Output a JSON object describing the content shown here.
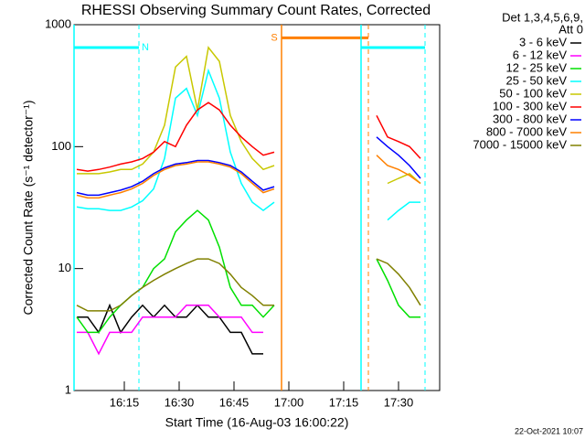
{
  "chart_data": {
    "type": "line",
    "title": "RHESSI Observing Summary Count Rates, Corrected",
    "x_label": "Start Time (16-Aug-03 16:00:22)",
    "y_label": "Corrected Count Rate (s⁻¹ detector⁻¹)",
    "legend_header": [
      "Det 1,3,4,5,6,9,",
      "Att 0"
    ],
    "footer": "22-Oct-2021 10:07",
    "log_y": true,
    "xlim": [
      1.25,
      101.25
    ],
    "xticks": [
      {
        "value": 15,
        "label": "16:15"
      },
      {
        "value": 30,
        "label": "16:30"
      },
      {
        "value": 45,
        "label": "16:45"
      },
      {
        "value": 60,
        "label": "17:00"
      },
      {
        "value": 75,
        "label": "17:15"
      },
      {
        "value": 90,
        "label": "17:30"
      }
    ],
    "ylim": [
      1,
      1000
    ],
    "yticks": [
      1,
      10,
      100,
      1000
    ],
    "x": [
      2,
      5,
      8,
      11,
      14,
      17,
      20,
      23,
      26,
      29,
      32,
      35,
      38,
      41,
      44,
      47,
      50,
      53,
      56,
      70,
      84,
      87,
      90,
      93,
      96
    ],
    "series": [
      {
        "name": "3 - 6 keV",
        "color": "#000000",
        "values": [
          4,
          4,
          3,
          5,
          3,
          4,
          5,
          4,
          5,
          4,
          4,
          5,
          4,
          4,
          3,
          3,
          2,
          2,
          null,
          null,
          null,
          null,
          null,
          null,
          null
        ]
      },
      {
        "name": "6 - 12 keV",
        "color": "#ff00ff",
        "values": [
          3,
          3,
          2,
          3,
          3,
          3,
          4,
          4,
          4,
          4,
          5,
          5,
          5,
          4,
          4,
          4,
          3,
          3,
          null,
          null,
          null,
          null,
          null,
          null,
          null
        ]
      },
      {
        "name": "12 - 25 keV",
        "color": "#00e000",
        "values": [
          4,
          3,
          3,
          4,
          5,
          6,
          7,
          10,
          12,
          20,
          25,
          30,
          25,
          15,
          7,
          5,
          5,
          4,
          5,
          null,
          12,
          8,
          5,
          4,
          4
        ]
      },
      {
        "name": "25 - 50 keV",
        "color": "#00ffff",
        "values": [
          32,
          31,
          31,
          30,
          30,
          32,
          36,
          45,
          80,
          250,
          300,
          180,
          420,
          250,
          90,
          50,
          35,
          30,
          35,
          null,
          null,
          25,
          30,
          35,
          35
        ]
      },
      {
        "name": "50 - 100 keV",
        "color": "#c8c800",
        "values": [
          60,
          60,
          60,
          62,
          65,
          65,
          72,
          90,
          150,
          450,
          550,
          200,
          650,
          500,
          180,
          110,
          80,
          65,
          70,
          null,
          null,
          50,
          55,
          60,
          50
        ]
      },
      {
        "name": "100 - 300 keV",
        "color": "#ff0000",
        "values": [
          65,
          63,
          65,
          68,
          72,
          75,
          80,
          90,
          110,
          100,
          150,
          200,
          230,
          200,
          150,
          120,
          100,
          85,
          90,
          null,
          180,
          120,
          110,
          100,
          80
        ]
      },
      {
        "name": "300 - 800 keV",
        "color": "#0000ff",
        "values": [
          42,
          40,
          40,
          42,
          44,
          47,
          52,
          60,
          67,
          72,
          74,
          77,
          77,
          74,
          70,
          62,
          52,
          44,
          47,
          null,
          120,
          100,
          85,
          70,
          55
        ]
      },
      {
        "name": "800 - 7000 keV",
        "color": "#ff8000",
        "values": [
          40,
          38,
          38,
          40,
          42,
          45,
          50,
          58,
          65,
          70,
          72,
          75,
          75,
          72,
          68,
          60,
          50,
          42,
          45,
          null,
          85,
          70,
          65,
          58,
          50
        ]
      },
      {
        "name": "7000 - 15000 keV",
        "color": "#808000",
        "values": [
          5,
          4.5,
          4.5,
          4.5,
          5,
          6,
          7,
          8,
          9,
          10,
          11,
          12,
          12,
          11,
          9,
          7,
          6,
          5,
          5,
          null,
          12,
          11,
          9,
          7,
          5
        ]
      }
    ],
    "flags": [
      {
        "label": "N",
        "color": "#00ffff",
        "start": 1.25,
        "end": 19,
        "level": 650
      },
      {
        "label": "S",
        "color": "#ff8000",
        "start": 58,
        "end": 81.75,
        "level": 780
      },
      {
        "color": "#00ffff",
        "start": 79.75,
        "end": 97.25,
        "level": 650
      }
    ]
  }
}
